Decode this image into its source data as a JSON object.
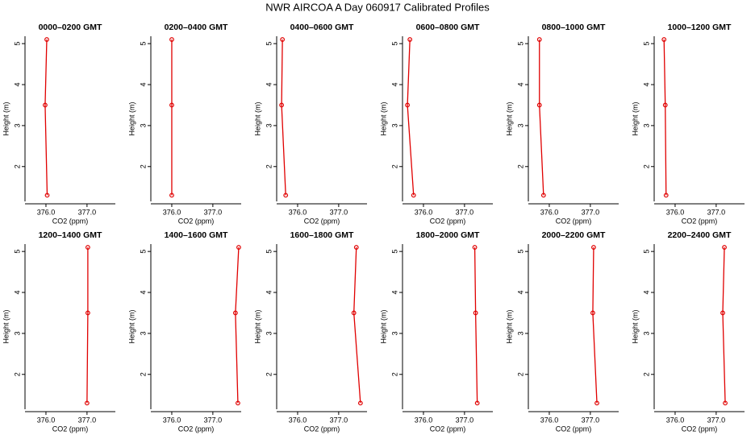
{
  "title": "NWR AIRCOA A  Day 060917  Calibrated Profiles",
  "chart_data": [
    {
      "type": "line",
      "title": "0000–0200 GMT",
      "x_label": "CO2 (ppm)",
      "y_label": "Height (m)",
      "series": [
        {
          "color": "#e00000",
          "x": [
            376.02,
            375.98,
            376.03
          ],
          "values": [
            5.1,
            3.5,
            1.3
          ]
        }
      ],
      "xlim": [
        375.49,
        377.69
      ],
      "ylim": [
        1.15,
        5.18
      ],
      "xticks": [
        {
          "value": 376,
          "label": "376.0"
        },
        {
          "value": 377,
          "label": "377.0"
        }
      ],
      "yticks": [
        2,
        3,
        4,
        5
      ]
    },
    {
      "type": "line",
      "title": "0200–0400 GMT",
      "x_label": "CO2 (ppm)",
      "y_label": "Height (m)",
      "series": [
        {
          "color": "#e00000",
          "x": [
            376.0,
            376.0,
            376.0
          ],
          "values": [
            5.1,
            3.5,
            1.3
          ]
        }
      ],
      "xlim": [
        375.49,
        377.69
      ],
      "ylim": [
        1.15,
        5.18
      ],
      "xticks": [
        {
          "value": 376,
          "label": "376.0"
        },
        {
          "value": 377,
          "label": "377.0"
        }
      ],
      "yticks": [
        2,
        3,
        4,
        5
      ]
    },
    {
      "type": "line",
      "title": "0400–0600 GMT",
      "x_label": "CO2 (ppm)",
      "y_label": "Height (m)",
      "series": [
        {
          "color": "#e00000",
          "x": [
            375.63,
            375.61,
            375.71
          ],
          "values": [
            5.1,
            3.5,
            1.3
          ]
        }
      ],
      "xlim": [
        375.49,
        377.69
      ],
      "ylim": [
        1.15,
        5.18
      ],
      "xticks": [
        {
          "value": 376,
          "label": "376.0"
        },
        {
          "value": 377,
          "label": "377.0"
        }
      ],
      "yticks": [
        2,
        3,
        4,
        5
      ]
    },
    {
      "type": "line",
      "title": "0600–0800 GMT",
      "x_label": "CO2 (ppm)",
      "y_label": "Height (m)",
      "series": [
        {
          "color": "#e00000",
          "x": [
            375.67,
            375.61,
            375.76
          ],
          "values": [
            5.1,
            3.5,
            1.3
          ]
        }
      ],
      "xlim": [
        375.49,
        377.69
      ],
      "ylim": [
        1.15,
        5.18
      ],
      "xticks": [
        {
          "value": 376,
          "label": "376.0"
        },
        {
          "value": 377,
          "label": "377.0"
        }
      ],
      "yticks": [
        2,
        3,
        4,
        5
      ]
    },
    {
      "type": "line",
      "title": "0800–1000 GMT",
      "x_label": "CO2 (ppm)",
      "y_label": "Height (m)",
      "series": [
        {
          "color": "#e00000",
          "x": [
            375.76,
            375.76,
            375.86
          ],
          "values": [
            5.1,
            3.5,
            1.3
          ]
        }
      ],
      "xlim": [
        375.49,
        377.69
      ],
      "ylim": [
        1.15,
        5.18
      ],
      "xticks": [
        {
          "value": 376,
          "label": "376.0"
        },
        {
          "value": 377,
          "label": "377.0"
        }
      ],
      "yticks": [
        2,
        3,
        4,
        5
      ]
    },
    {
      "type": "line",
      "title": "1000–1200 GMT",
      "x_label": "CO2 (ppm)",
      "y_label": "Height (m)",
      "series": [
        {
          "color": "#e00000",
          "x": [
            375.73,
            375.76,
            375.78
          ],
          "values": [
            5.1,
            3.5,
            1.3
          ]
        }
      ],
      "xlim": [
        375.49,
        377.69
      ],
      "ylim": [
        1.15,
        5.18
      ],
      "xticks": [
        {
          "value": 376,
          "label": "376.0"
        },
        {
          "value": 377,
          "label": "377.0"
        }
      ],
      "yticks": [
        2,
        3,
        4,
        5
      ]
    },
    {
      "type": "line",
      "title": "1200–1400 GMT",
      "x_label": "CO2 (ppm)",
      "y_label": "Height (m)",
      "series": [
        {
          "color": "#e00000",
          "x": [
            377.02,
            377.02,
            377.0
          ],
          "values": [
            5.1,
            3.5,
            1.3
          ]
        }
      ],
      "xlim": [
        375.49,
        377.69
      ],
      "ylim": [
        1.15,
        5.18
      ],
      "xticks": [
        {
          "value": 376,
          "label": "376.0"
        },
        {
          "value": 377,
          "label": "377.0"
        }
      ],
      "yticks": [
        2,
        3,
        4,
        5
      ]
    },
    {
      "type": "line",
      "title": "1400–1600 GMT",
      "x_label": "CO2 (ppm)",
      "y_label": "Height (m)",
      "series": [
        {
          "color": "#e00000",
          "x": [
            377.63,
            377.55,
            377.61
          ],
          "values": [
            5.1,
            3.5,
            1.3
          ]
        }
      ],
      "xlim": [
        375.49,
        377.69
      ],
      "ylim": [
        1.15,
        5.18
      ],
      "xticks": [
        {
          "value": 376,
          "label": "376.0"
        },
        {
          "value": 377,
          "label": "377.0"
        }
      ],
      "yticks": [
        2,
        3,
        4,
        5
      ]
    },
    {
      "type": "line",
      "title": "1600–1800 GMT",
      "x_label": "CO2 (ppm)",
      "y_label": "Height (m)",
      "series": [
        {
          "color": "#e00000",
          "x": [
            377.43,
            377.37,
            377.53
          ],
          "values": [
            5.1,
            3.5,
            1.3
          ]
        }
      ],
      "xlim": [
        375.49,
        377.69
      ],
      "ylim": [
        1.15,
        5.18
      ],
      "xticks": [
        {
          "value": 376,
          "label": "376.0"
        },
        {
          "value": 377,
          "label": "377.0"
        }
      ],
      "yticks": [
        2,
        3,
        4,
        5
      ]
    },
    {
      "type": "line",
      "title": "1800–2000 GMT",
      "x_label": "CO2 (ppm)",
      "y_label": "Height (m)",
      "series": [
        {
          "color": "#e00000",
          "x": [
            377.25,
            377.27,
            377.31
          ],
          "values": [
            5.1,
            3.5,
            1.3
          ]
        }
      ],
      "xlim": [
        375.49,
        377.69
      ],
      "ylim": [
        1.15,
        5.18
      ],
      "xticks": [
        {
          "value": 376,
          "label": "376.0"
        },
        {
          "value": 377,
          "label": "377.0"
        }
      ],
      "yticks": [
        2,
        3,
        4,
        5
      ]
    },
    {
      "type": "line",
      "title": "2000–2200 GMT",
      "x_label": "CO2 (ppm)",
      "y_label": "Height (m)",
      "series": [
        {
          "color": "#e00000",
          "x": [
            377.08,
            377.06,
            377.16
          ],
          "values": [
            5.1,
            3.5,
            1.3
          ]
        }
      ],
      "xlim": [
        375.49,
        377.69
      ],
      "ylim": [
        1.15,
        5.18
      ],
      "xticks": [
        {
          "value": 376,
          "label": "376.0"
        },
        {
          "value": 377,
          "label": "377.0"
        }
      ],
      "yticks": [
        2,
        3,
        4,
        5
      ]
    },
    {
      "type": "line",
      "title": "2200–2400 GMT",
      "x_label": "CO2 (ppm)",
      "y_label": "Height (m)",
      "series": [
        {
          "color": "#e00000",
          "x": [
            377.2,
            377.16,
            377.22
          ],
          "values": [
            5.1,
            3.5,
            1.3
          ]
        }
      ],
      "xlim": [
        375.49,
        377.69
      ],
      "ylim": [
        1.15,
        5.18
      ],
      "xticks": [
        {
          "value": 376,
          "label": "376.0"
        },
        {
          "value": 377,
          "label": "377.0"
        }
      ],
      "yticks": [
        2,
        3,
        4,
        5
      ]
    }
  ]
}
